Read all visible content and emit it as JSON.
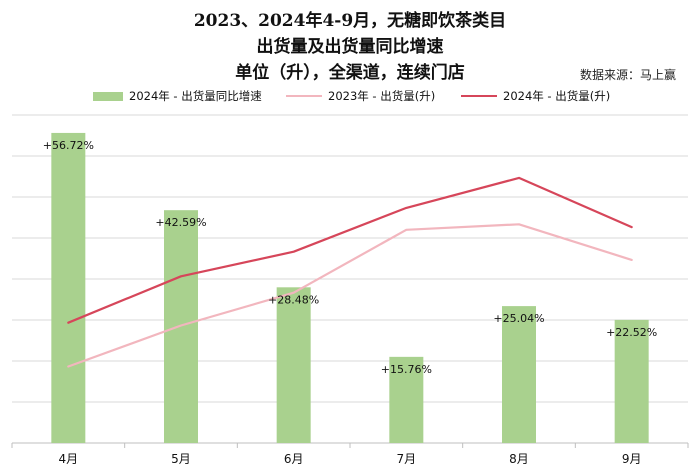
{
  "title_lines": [
    "2023、2024年4-9月，无糖即饮茶类目",
    "出货量及出货量同比增速",
    "单位（升），全渠道，连续门店"
  ],
  "source": "数据来源：马上赢",
  "colors": {
    "bar": "#a9d18e",
    "line_2023": "#f2b6be",
    "line_2024": "#d6465a",
    "grid": "#d9d9d9",
    "axis": "#bfbfbf"
  },
  "chart_data": {
    "type": "bar",
    "categories": [
      "4月",
      "5月",
      "6月",
      "7月",
      "8月",
      "9月"
    ],
    "series": [
      {
        "name": "2024年 - 出货量同比增速",
        "type": "bar",
        "values": [
          56.72,
          42.59,
          28.48,
          15.76,
          25.04,
          22.52
        ],
        "labels": [
          "+56.72%",
          "+42.59%",
          "+28.48%",
          "+15.76%",
          "+25.04%",
          "+22.52%"
        ]
      },
      {
        "name": "2023年 - 出货量(升)",
        "type": "line",
        "values": [
          28,
          43,
          55,
          78,
          80,
          67
        ]
      },
      {
        "name": "2024年 - 出货量(升)",
        "type": "line",
        "values": [
          44,
          61,
          70,
          86,
          97,
          79
        ]
      }
    ],
    "bar_axis_range": [
      0,
      60
    ],
    "line_axis_range": [
      0,
      120
    ],
    "grid": true,
    "legend_position": "top"
  }
}
